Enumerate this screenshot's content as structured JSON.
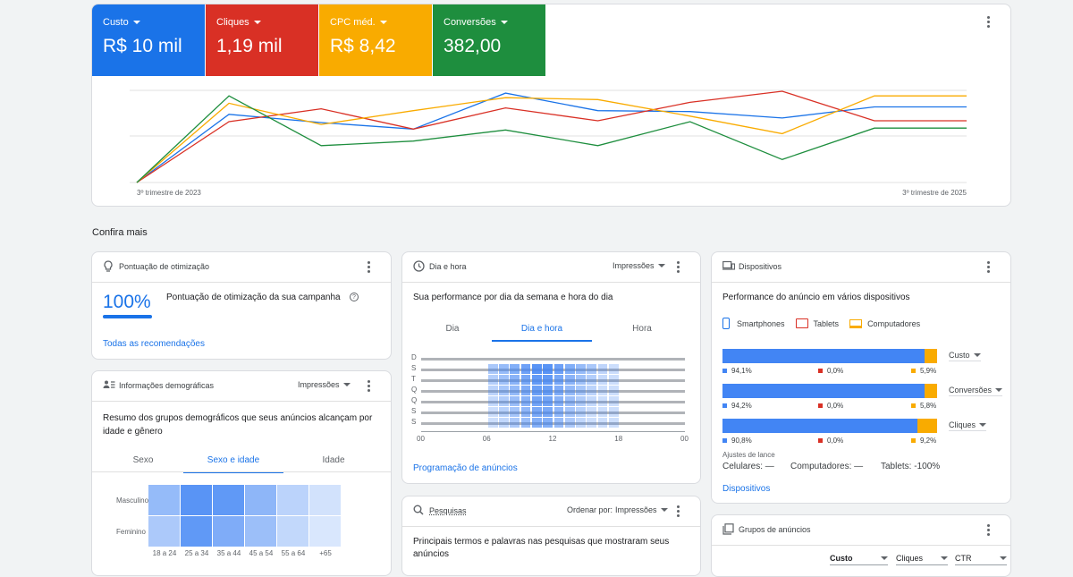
{
  "colors": {
    "blue": "#1a73e8",
    "red": "#d93025",
    "yellow": "#f9ab00",
    "green": "#1e8e3e"
  },
  "metrics": [
    {
      "label": "Custo",
      "value": "R$ 10 mil",
      "color": "#1a73e8"
    },
    {
      "label": "Cliques",
      "value": "1,19 mil",
      "color": "#d93025"
    },
    {
      "label": "CPC méd.",
      "value": "R$ 8,42",
      "color": "#f9ab00"
    },
    {
      "label": "Conversões",
      "value": "382,00",
      "color": "#1e8e3e"
    }
  ],
  "chart_data": {
    "type": "line",
    "x": [
      "3º trimestre de 2023",
      "",
      "",
      "",
      "",
      "",
      "",
      "",
      "",
      "3º trimestre de 2025"
    ],
    "xtick_labels": [
      "3º trimestre de 2023",
      "3º trimestre de 2025"
    ],
    "series": [
      {
        "color": "#1a73e8",
        "values": [
          0,
          74,
          65,
          58,
          97,
          78,
          77,
          70,
          82,
          82
        ]
      },
      {
        "color": "#d93025",
        "values": [
          0,
          66,
          80,
          58,
          81,
          67,
          87,
          99,
          67,
          67
        ]
      },
      {
        "color": "#f9ab00",
        "values": [
          0,
          86,
          63,
          78,
          92,
          90,
          72,
          53,
          94,
          94
        ]
      },
      {
        "color": "#1e8e3e",
        "values": [
          0,
          94,
          40,
          45,
          57,
          40,
          66,
          25,
          59,
          59
        ]
      }
    ],
    "ylim": [
      0,
      100
    ],
    "grid": true
  },
  "section_title": "Confira mais",
  "optimization": {
    "title": "Pontuação de otimização",
    "score": "100%",
    "description": "Pontuação de otimização da sua campanha",
    "help_icon": "?",
    "link": "Todas as recomendações",
    "progress": 1.0
  },
  "demographics": {
    "title": "Informações demográficas",
    "dropdown": "Impressões",
    "subtitle": "Resumo dos grupos demográficos que seus anúncios alcançam por idade e gênero",
    "tabs": [
      "Sexo",
      "Sexo e idade",
      "Idade"
    ],
    "active_tab": 1,
    "rows": [
      "Masculino",
      "Feminino"
    ],
    "cols": [
      "18 a 24",
      "25 a 34",
      "35 a 44",
      "45 a 54",
      "55 a 64",
      "+65"
    ],
    "intensity": [
      [
        0.55,
        0.95,
        0.9,
        0.6,
        0.3,
        0.15
      ],
      [
        0.4,
        0.9,
        0.7,
        0.5,
        0.25,
        0.1
      ]
    ]
  },
  "dayhour": {
    "title": "Dia e hora",
    "dropdown": "Impressões",
    "subtitle": "Sua performance por dia da semana e hora do dia",
    "tabs": [
      "Dia",
      "Dia e hora",
      "Hora"
    ],
    "active_tab": 1,
    "days": [
      "D",
      "S",
      "T",
      "Q",
      "Q",
      "S",
      "S"
    ],
    "hours": [
      "00",
      "06",
      "12",
      "18",
      "00"
    ],
    "link": "Programação de anúncios"
  },
  "searches": {
    "title": "Pesquisas",
    "sort_label": "Ordenar por:",
    "dropdown": "Impressões",
    "subtitle": "Principais termos e palavras nas pesquisas que mostraram seus anúncios"
  },
  "devices": {
    "title": "Dispositivos",
    "subtitle": "Performance do anúncio em vários dispositivos",
    "legend": [
      "Smartphones",
      "Tablets",
      "Computadores"
    ],
    "bars": [
      {
        "metric": "Custo",
        "smartphones": "94,1%",
        "tablets": "0,0%",
        "computers": "5,9%",
        "share": 0.941
      },
      {
        "metric": "Conversões",
        "smartphones": "94,2%",
        "tablets": "0,0%",
        "computers": "5,8%",
        "share": 0.942
      },
      {
        "metric": "Cliques",
        "smartphones": "90,8%",
        "tablets": "0,0%",
        "computers": "9,2%",
        "share": 0.908
      }
    ],
    "bid_title": "Ajustes de lance",
    "bid_mobile": "Celulares: —",
    "bid_computers": "Computadores: —",
    "bid_tablets": "Tablets: -100%",
    "link": "Dispositivos"
  },
  "adgroups": {
    "title": "Grupos de anúncios",
    "selectors": [
      "Custo",
      "Cliques",
      "CTR"
    ]
  }
}
